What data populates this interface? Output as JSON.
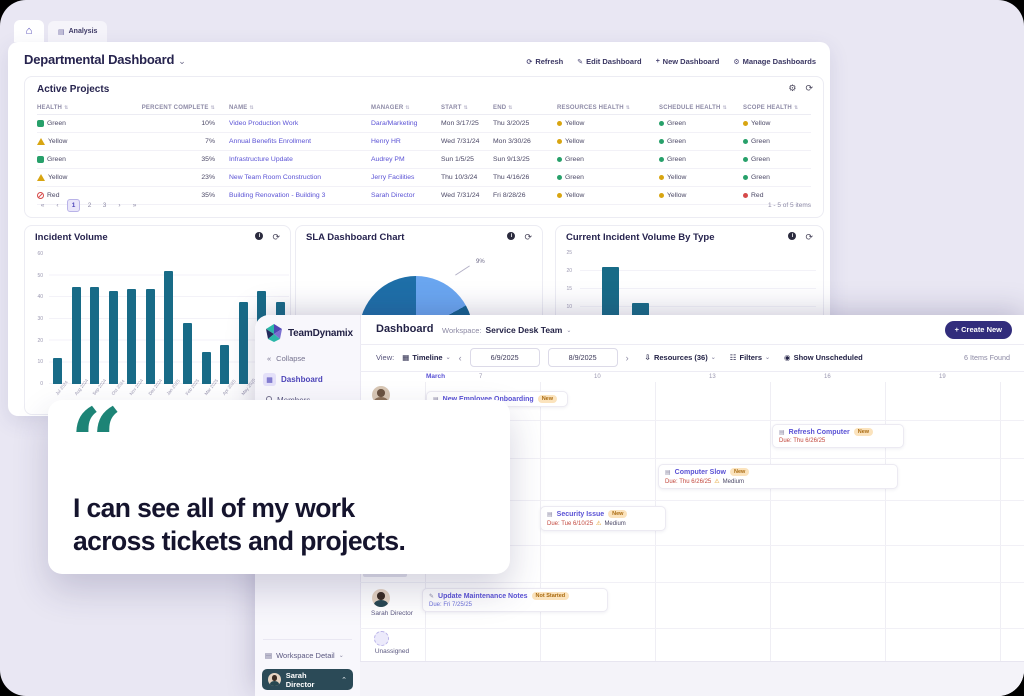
{
  "icons": {
    "home": "⌂",
    "analysis_tab": "▤",
    "refresh": "⟳",
    "edit": "✎",
    "plus": "+",
    "gear": "⚙",
    "chevron_down": "⌄",
    "chevron_up": "⌃",
    "info": "i",
    "first": "«",
    "prev": "‹",
    "next": "›",
    "last": "»",
    "collapse": "«",
    "grid_view": "▦",
    "building": "▤",
    "download_person": "⇩",
    "filter_list": "☷",
    "eye": "◉",
    "warning": "⚠",
    "ticket": "▤"
  },
  "back_window": {
    "tabs": {
      "analysis": "Analysis"
    },
    "title": "Departmental Dashboard",
    "toolbar": {
      "refresh": "Refresh",
      "edit": "Edit Dashboard",
      "new_dashboard": "New Dashboard",
      "manage": "Manage Dashboards"
    },
    "active_projects": {
      "title": "Active Projects",
      "columns": {
        "health": "Health",
        "percent": "Percent Complete",
        "name": "Name",
        "manager": "Manager",
        "start": "Start",
        "end": "End",
        "resources": "Resources Health",
        "schedule": "Schedule Health",
        "scope": "Scope Health"
      },
      "rows": [
        {
          "health": "Green",
          "percent": "10%",
          "name": "Video Production Work",
          "manager": "Dara/Marketing",
          "start": "Mon 3/17/25",
          "end": "Thu 3/20/25",
          "resources": "Yellow",
          "schedule": "Green",
          "scope": "Yellow"
        },
        {
          "health": "Yellow",
          "percent": "7%",
          "name": "Annual Benefits Enrollment",
          "manager": "Henry HR",
          "start": "Wed 7/31/24",
          "end": "Mon 3/30/26",
          "resources": "Yellow",
          "schedule": "Green",
          "scope": "Green"
        },
        {
          "health": "Green",
          "percent": "35%",
          "name": "Infrastructure Update",
          "manager": "Audrey PM",
          "start": "Sun 1/5/25",
          "end": "Sun 9/13/25",
          "resources": "Green",
          "schedule": "Green",
          "scope": "Green"
        },
        {
          "health": "Yellow",
          "percent": "23%",
          "name": "New Team Room Construction",
          "manager": "Jerry Facilities",
          "start": "Thu 10/3/24",
          "end": "Thu 4/16/26",
          "resources": "Green",
          "schedule": "Yellow",
          "scope": "Green"
        },
        {
          "health": "Red",
          "percent": "35%",
          "name": "Building Renovation - Building 3",
          "manager": "Sarah Director",
          "start": "Wed 7/31/24",
          "end": "Fri 8/28/26",
          "resources": "Yellow",
          "schedule": "Yellow",
          "scope": "Red"
        }
      ],
      "pagination": {
        "pages": [
          "1",
          "2",
          "3"
        ],
        "active_page": "1",
        "summary": "1 - 5 of 5 items"
      }
    }
  },
  "chart_data": [
    {
      "type": "bar",
      "title": "Incident Volume",
      "categories": [
        "Jul 2024",
        "Aug 2024",
        "Sep 2024",
        "Oct 2024",
        "Nov 2024",
        "Dec 2024",
        "Jan 2025",
        "Feb 2025",
        "Mar 2025",
        "Apr 2025",
        "May 2025",
        "Jun 2025",
        "Jul 2025"
      ],
      "values": [
        12,
        45,
        45,
        43,
        44,
        44,
        52,
        28,
        15,
        18,
        38,
        43,
        38
      ],
      "ylim": [
        0,
        60
      ],
      "ytick_step": 10,
      "bar_color": "#186b87",
      "grid": true,
      "legend": "none"
    },
    {
      "type": "pie",
      "title": "SLA Dashboard Chart",
      "slices": [
        {
          "label": "",
          "value": 74,
          "color": "#1e6fa8"
        },
        {
          "label": "9%",
          "value": 17,
          "color": "#6aa6f0"
        },
        {
          "label": "",
          "value": 9,
          "color": "#14618f"
        }
      ],
      "callout_label": "9%"
    },
    {
      "type": "bar",
      "title": "Current Incident Volume By Type",
      "categories": [
        "",
        ""
      ],
      "values": [
        21,
        11
      ],
      "ylim": [
        0,
        25
      ],
      "ytick_step": 5,
      "bar_color": "#186b87",
      "grid": true,
      "legend": "none"
    }
  ],
  "front_window": {
    "brand": "TeamDynamix",
    "sidebar": {
      "collapse": "Collapse",
      "dashboard": "Dashboard",
      "members": "Members",
      "workspace_detail": "Workspace Detail",
      "user": "Sarah Director"
    },
    "header": {
      "title": "Dashboard",
      "workspace_label": "Workspace:",
      "workspace_value": "Service Desk Team",
      "create_new": "+ Create New"
    },
    "filter_bar": {
      "view_label": "View:",
      "view_value": "Timeline",
      "date_start": "6/9/2025",
      "date_end": "8/9/2025",
      "resources": "Resources (36)",
      "filters": "Filters",
      "show_unscheduled": "Show Unscheduled",
      "items_found": "6 Items Found"
    },
    "timeline": {
      "month": "March",
      "days": [
        "7",
        "10",
        "13",
        "16",
        "19"
      ],
      "lanes": {
        "sarah": "Sarah Director",
        "unassigned": "Unassigned"
      },
      "cards": {
        "onboarding": {
          "title": "New Employee Onboarding",
          "badge": "New"
        },
        "refresh": {
          "title": "Refresh Computer",
          "badge": "New",
          "due": "Due: Thu 6/26/25"
        },
        "slow": {
          "title": "Computer Slow",
          "badge": "New",
          "due": "Due: Thu 6/26/25",
          "priority": "Medium"
        },
        "security": {
          "title": "Security Issue",
          "badge": "New",
          "due": "Due: Tue 6/10/25",
          "priority": "Medium"
        },
        "maintenance": {
          "title": "Update Maintenance Notes",
          "badge": "Not Started",
          "due": "Due: Fri 7/25/25"
        }
      }
    }
  },
  "quote": {
    "mark": "“",
    "line1": "I can see all of my work",
    "line2": "across tickets and projects."
  }
}
